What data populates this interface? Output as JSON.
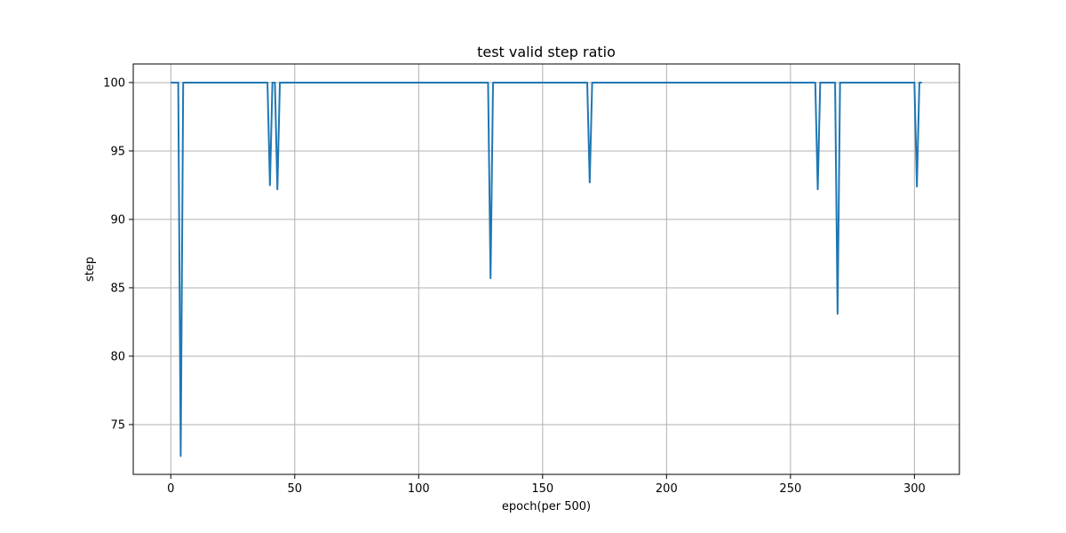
{
  "chart_data": {
    "type": "line",
    "title": "test valid step ratio",
    "xlabel": "epoch(per 500)",
    "ylabel": "step",
    "xlim": [
      -15.15,
      318.15
    ],
    "ylim": [
      71.36,
      101.36
    ],
    "xticks": [
      0,
      50,
      100,
      150,
      200,
      250,
      300
    ],
    "yticks": [
      75,
      80,
      85,
      90,
      95,
      100
    ],
    "grid": true,
    "legend": "none",
    "series": [
      {
        "color": "#1f77b4",
        "points": [
          [
            0,
            100
          ],
          [
            3,
            100
          ],
          [
            4,
            72.7
          ],
          [
            5,
            100
          ],
          [
            39,
            100
          ],
          [
            40,
            92.5
          ],
          [
            41,
            100
          ],
          [
            42,
            100
          ],
          [
            43,
            92.2
          ],
          [
            44,
            100
          ],
          [
            128,
            100
          ],
          [
            129,
            85.7
          ],
          [
            130,
            100
          ],
          [
            168,
            100
          ],
          [
            169,
            92.7
          ],
          [
            170,
            100
          ],
          [
            260,
            100
          ],
          [
            261,
            92.2
          ],
          [
            262,
            100
          ],
          [
            268,
            100
          ],
          [
            269,
            83.1
          ],
          [
            270,
            100
          ],
          [
            300,
            100
          ],
          [
            301,
            92.4
          ],
          [
            302,
            100
          ],
          [
            303,
            100
          ]
        ]
      }
    ]
  }
}
